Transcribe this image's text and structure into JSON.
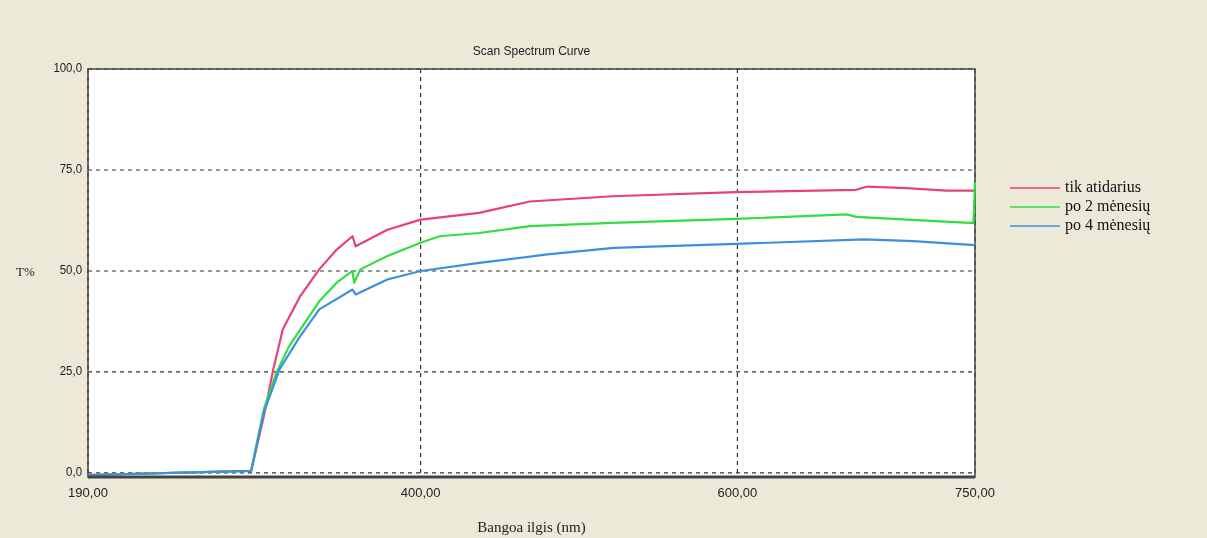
{
  "chart_data": {
    "type": "line",
    "title": "Scan Spectrum Curve",
    "xlabel": "Bangoa ilgis (nm)",
    "ylabel": "T%",
    "xlim": [
      190,
      750
    ],
    "ylim": [
      -1,
      100
    ],
    "xticks": [
      {
        "value": 190,
        "label": "190,00"
      },
      {
        "value": 400,
        "label": "400,00"
      },
      {
        "value": 600,
        "label": "600,00"
      },
      {
        "value": 750,
        "label": "750,00"
      }
    ],
    "yticks": [
      {
        "value": 0,
        "label": "0,0"
      },
      {
        "value": 25,
        "label": "25,0"
      },
      {
        "value": 50,
        "label": "50,0"
      },
      {
        "value": 75,
        "label": "75,0"
      },
      {
        "value": 100,
        "label": "100,0"
      }
    ],
    "grid": true,
    "legend": "right",
    "marker": "none",
    "line_style": "solid",
    "series": [
      {
        "name": "tik atidarius",
        "color": "#e8407a",
        "x": [
          190,
          293,
          301,
          307,
          313,
          324,
          336,
          347,
          357,
          359,
          379,
          400,
          437,
          469,
          521,
          599,
          675,
          682,
          707,
          732,
          750
        ],
        "values": [
          -0.5,
          0.5,
          14,
          25.7,
          35.6,
          43.8,
          50.4,
          55.3,
          58.6,
          56.1,
          60.2,
          62.7,
          64.4,
          67.2,
          68.5,
          69.5,
          70.1,
          70.9,
          70.5,
          69.9,
          69.9
        ]
      },
      {
        "name": "po 2 mėnesių",
        "color": "#33dd44",
        "x": [
          190,
          293,
          301,
          309,
          317,
          336,
          347,
          357,
          358,
          362,
          379,
          400,
          412,
          437,
          469,
          521,
          599,
          669,
          675,
          728,
          747,
          749,
          750
        ],
        "values": [
          -0.5,
          0.5,
          15.8,
          24.9,
          31.4,
          42.5,
          47.1,
          50,
          47.1,
          50.4,
          53.7,
          57,
          58.6,
          59.4,
          61.1,
          61.9,
          62.9,
          64,
          63.4,
          62.3,
          61.9,
          61.9,
          72
        ]
      },
      {
        "name": "po 4 mėnesių",
        "color": "#3d8fe0",
        "x": [
          190,
          293,
          301,
          311,
          324,
          336,
          357,
          359,
          379,
          400,
          437,
          480,
          522,
          599,
          680,
          711,
          750
        ],
        "values": [
          -0.5,
          0.5,
          15,
          25.7,
          33.9,
          40.5,
          45.4,
          44.2,
          47.9,
          50,
          52,
          54.1,
          55.7,
          56.7,
          57.8,
          57.4,
          56.4
        ]
      }
    ]
  }
}
